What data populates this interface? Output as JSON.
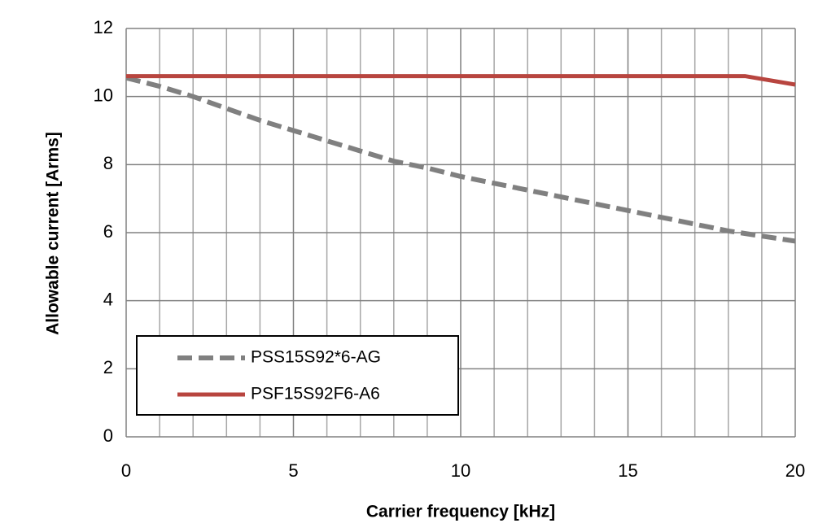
{
  "chart_data": {
    "type": "line",
    "x_label": "Carrier frequency [kHz]",
    "y_label": "Allowable  current [Arms]",
    "xlim": [
      0,
      20
    ],
    "xticks": [
      0,
      5,
      10,
      15,
      20
    ],
    "x_minor_divisions": 5,
    "ylim": [
      0,
      12
    ],
    "yticks": [
      0,
      2,
      4,
      6,
      8,
      10,
      12
    ],
    "grid": true,
    "legend": "lower left",
    "series": [
      {
        "name": "PSS15S92*6-AG",
        "color": "#808080",
        "dashed": true,
        "x": [
          0,
          1,
          2,
          3,
          4,
          5,
          6,
          7,
          8,
          9,
          10,
          11,
          12,
          13,
          14,
          15,
          16,
          17,
          18,
          19,
          20
        ],
        "values": [
          10.55,
          10.3,
          10.0,
          9.65,
          9.3,
          9.0,
          8.7,
          8.4,
          8.1,
          7.9,
          7.65,
          7.45,
          7.25,
          7.05,
          6.85,
          6.65,
          6.45,
          6.25,
          6.05,
          5.9,
          5.75
        ]
      },
      {
        "name": "PSF15S92F6-A6",
        "color": "#b8453f",
        "dashed": false,
        "x": [
          0,
          18.5,
          20
        ],
        "values": [
          10.6,
          10.6,
          10.35
        ]
      }
    ]
  }
}
